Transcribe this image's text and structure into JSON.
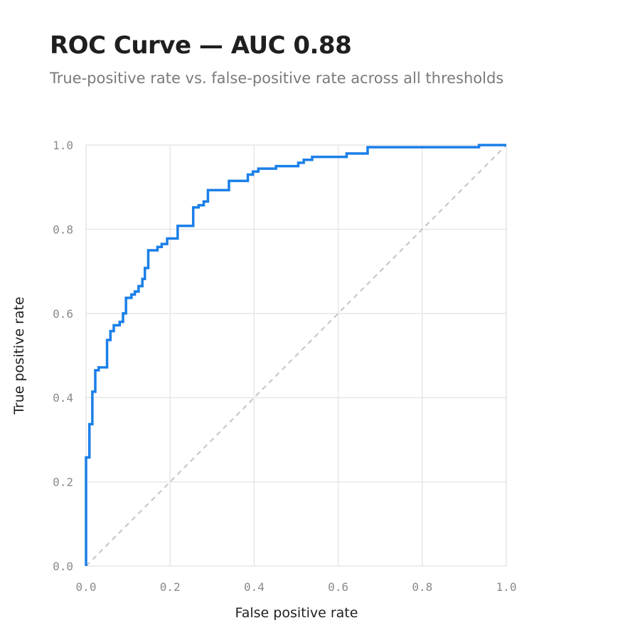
{
  "chart_data": {
    "type": "line",
    "title": "ROC Curve — AUC 0.88",
    "subtitle": "True-positive rate vs. false-positive rate across all thresholds",
    "xlabel": "False positive rate",
    "ylabel": "True positive rate",
    "xlim": [
      0,
      1
    ],
    "ylim": [
      0,
      1
    ],
    "xticks": [
      "0.0",
      "0.2",
      "0.4",
      "0.6",
      "0.8",
      "1.0"
    ],
    "yticks": [
      "0.0",
      "0.2",
      "0.4",
      "0.6",
      "0.8",
      "1.0"
    ],
    "grid": true,
    "legend": "none",
    "series": [
      {
        "x": [
          0,
          0,
          0.008,
          0.008,
          0.015,
          0.015,
          0.022,
          0.022,
          0.03,
          0.03,
          0.05,
          0.05,
          0.058,
          0.058,
          0.066,
          0.066,
          0.08,
          0.08,
          0.088,
          0.088,
          0.095,
          0.095,
          0.108,
          0.108,
          0.116,
          0.116,
          0.125,
          0.125,
          0.134,
          0.134,
          0.14,
          0.14,
          0.148,
          0.148,
          0.17,
          0.17,
          0.18,
          0.18,
          0.193,
          0.193,
          0.218,
          0.218,
          0.255,
          0.255,
          0.268,
          0.268,
          0.28,
          0.28,
          0.29,
          0.29,
          0.34,
          0.34,
          0.385,
          0.385,
          0.397,
          0.397,
          0.41,
          0.41,
          0.452,
          0.452,
          0.505,
          0.505,
          0.518,
          0.518,
          0.538,
          0.538,
          0.62,
          0.62,
          0.67,
          0.67,
          0.935,
          0.935,
          1.0
        ],
        "y": [
          0,
          0.258,
          0.258,
          0.337,
          0.337,
          0.414,
          0.414,
          0.465,
          0.465,
          0.472,
          0.472,
          0.537,
          0.537,
          0.558,
          0.558,
          0.572,
          0.572,
          0.58,
          0.58,
          0.6,
          0.6,
          0.637,
          0.637,
          0.645,
          0.645,
          0.652,
          0.652,
          0.665,
          0.665,
          0.682,
          0.682,
          0.708,
          0.708,
          0.75,
          0.75,
          0.758,
          0.758,
          0.765,
          0.765,
          0.778,
          0.778,
          0.808,
          0.808,
          0.852,
          0.852,
          0.857,
          0.857,
          0.866,
          0.866,
          0.893,
          0.893,
          0.915,
          0.915,
          0.93,
          0.93,
          0.937,
          0.937,
          0.944,
          0.944,
          0.95,
          0.95,
          0.958,
          0.958,
          0.965,
          0.965,
          0.972,
          0.972,
          0.98,
          0.98,
          0.995,
          0.995,
          1.0,
          1.0
        ],
        "color": "#1a7fe8"
      }
    ],
    "baseline": {
      "x": [
        0,
        1
      ],
      "y": [
        0,
        1
      ],
      "style": "dashed",
      "color": "#c4c4c4"
    }
  }
}
